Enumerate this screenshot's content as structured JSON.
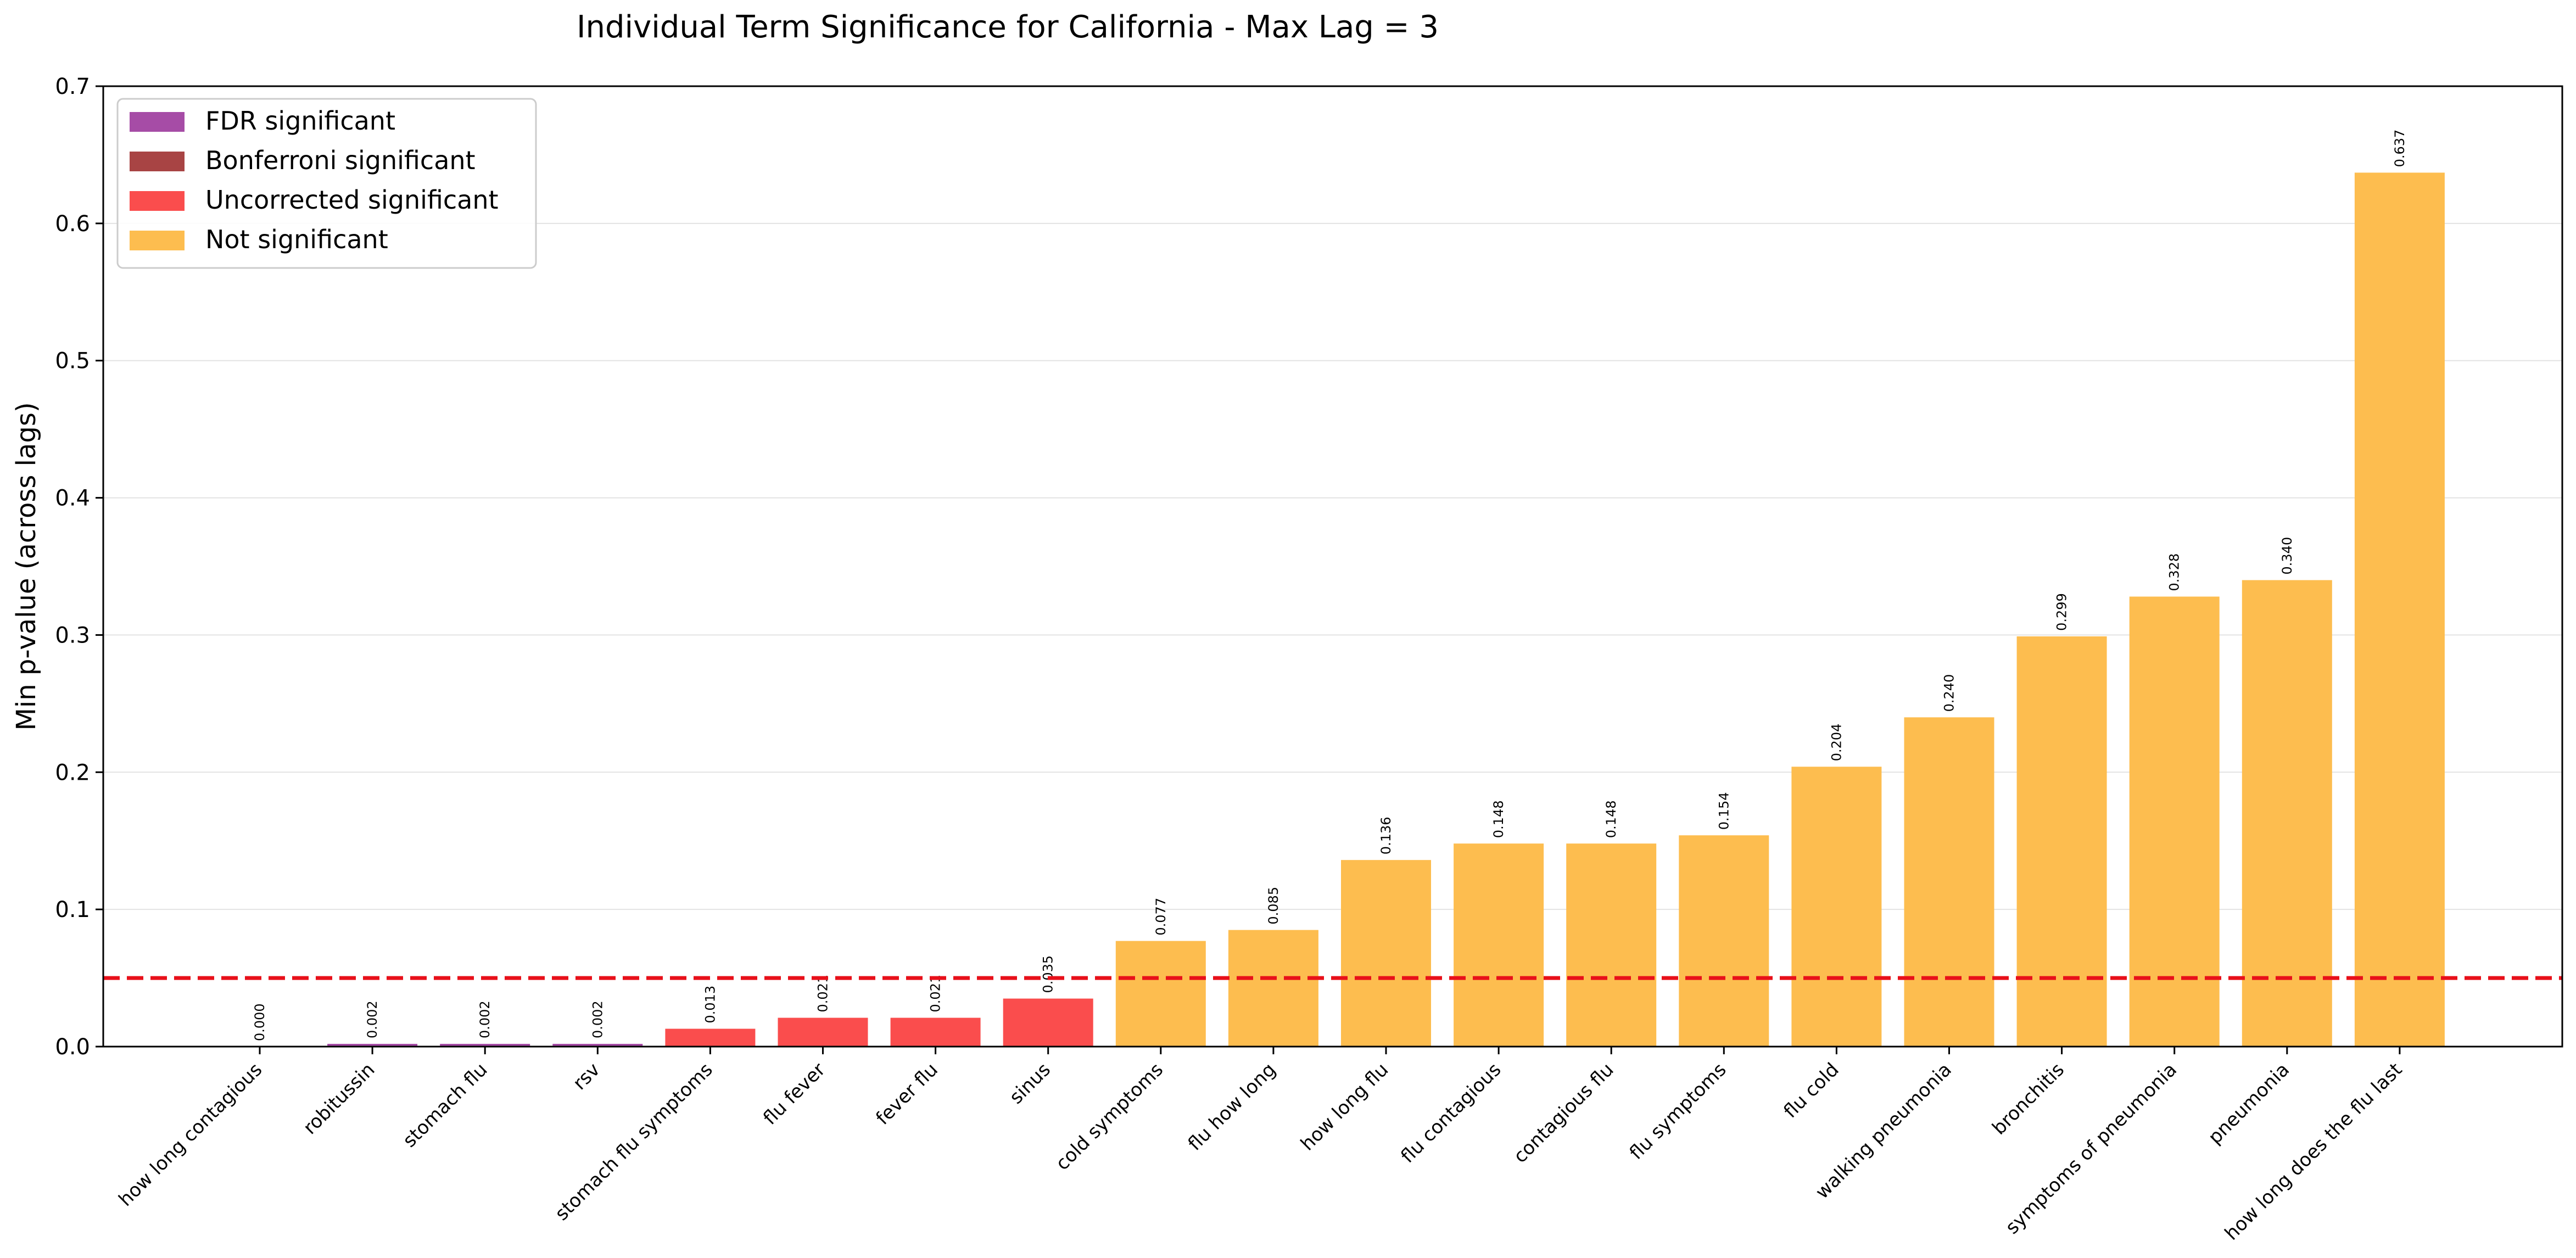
{
  "chart_data": {
    "type": "bar",
    "title": "Individual Term Significance for California - Max Lag = 3",
    "xlabel": "",
    "ylabel": "Min p-value (across lags)",
    "ylim": [
      0,
      0.7
    ],
    "yticks": [
      0.0,
      0.1,
      0.2,
      0.3,
      0.4,
      0.5,
      0.6,
      0.7
    ],
    "ytick_labels": [
      "0.0",
      "0.1",
      "0.2",
      "0.3",
      "0.4",
      "0.5",
      "0.6",
      "0.7"
    ],
    "grid": "y",
    "threshold": 0.05,
    "threshold_color": "#e8101a",
    "legend_position": "top-left",
    "legend": [
      {
        "label": "FDR significant",
        "color": "#a64ca6"
      },
      {
        "label": "Bonferroni significant",
        "color": "#a84444"
      },
      {
        "label": "Uncorrected significant",
        "color": "#fa4d4d"
      },
      {
        "label": "Not significant",
        "color": "#fdbd4f"
      }
    ],
    "categories": [
      "how long contagious",
      "robitussin",
      "stomach flu",
      "rsv",
      "stomach flu symptoms",
      "flu fever",
      "fever flu",
      "sinus",
      "cold symptoms",
      "flu how long",
      "how long flu",
      "flu contagious",
      "contagious flu",
      "flu symptoms",
      "flu cold",
      "walking pneumonia",
      "bronchitis",
      "symptoms of pneumonia",
      "pneumonia",
      "how long does the flu last"
    ],
    "values": [
      0.0,
      0.002,
      0.002,
      0.002,
      0.013,
      0.021,
      0.021,
      0.035,
      0.077,
      0.085,
      0.136,
      0.148,
      0.148,
      0.154,
      0.204,
      0.24,
      0.299,
      0.328,
      0.34,
      0.637
    ],
    "value_labels": [
      "0.000",
      "0.002",
      "0.002",
      "0.002",
      "0.013",
      "0.021",
      "0.021",
      "0.035",
      "0.077",
      "0.085",
      "0.136",
      "0.148",
      "0.148",
      "0.154",
      "0.204",
      "0.240",
      "0.299",
      "0.328",
      "0.340",
      "0.637"
    ],
    "significance": [
      "FDR significant",
      "FDR significant",
      "FDR significant",
      "FDR significant",
      "Uncorrected significant",
      "Uncorrected significant",
      "Uncorrected significant",
      "Uncorrected significant",
      "Not significant",
      "Not significant",
      "Not significant",
      "Not significant",
      "Not significant",
      "Not significant",
      "Not significant",
      "Not significant",
      "Not significant",
      "Not significant",
      "Not significant",
      "Not significant"
    ]
  }
}
